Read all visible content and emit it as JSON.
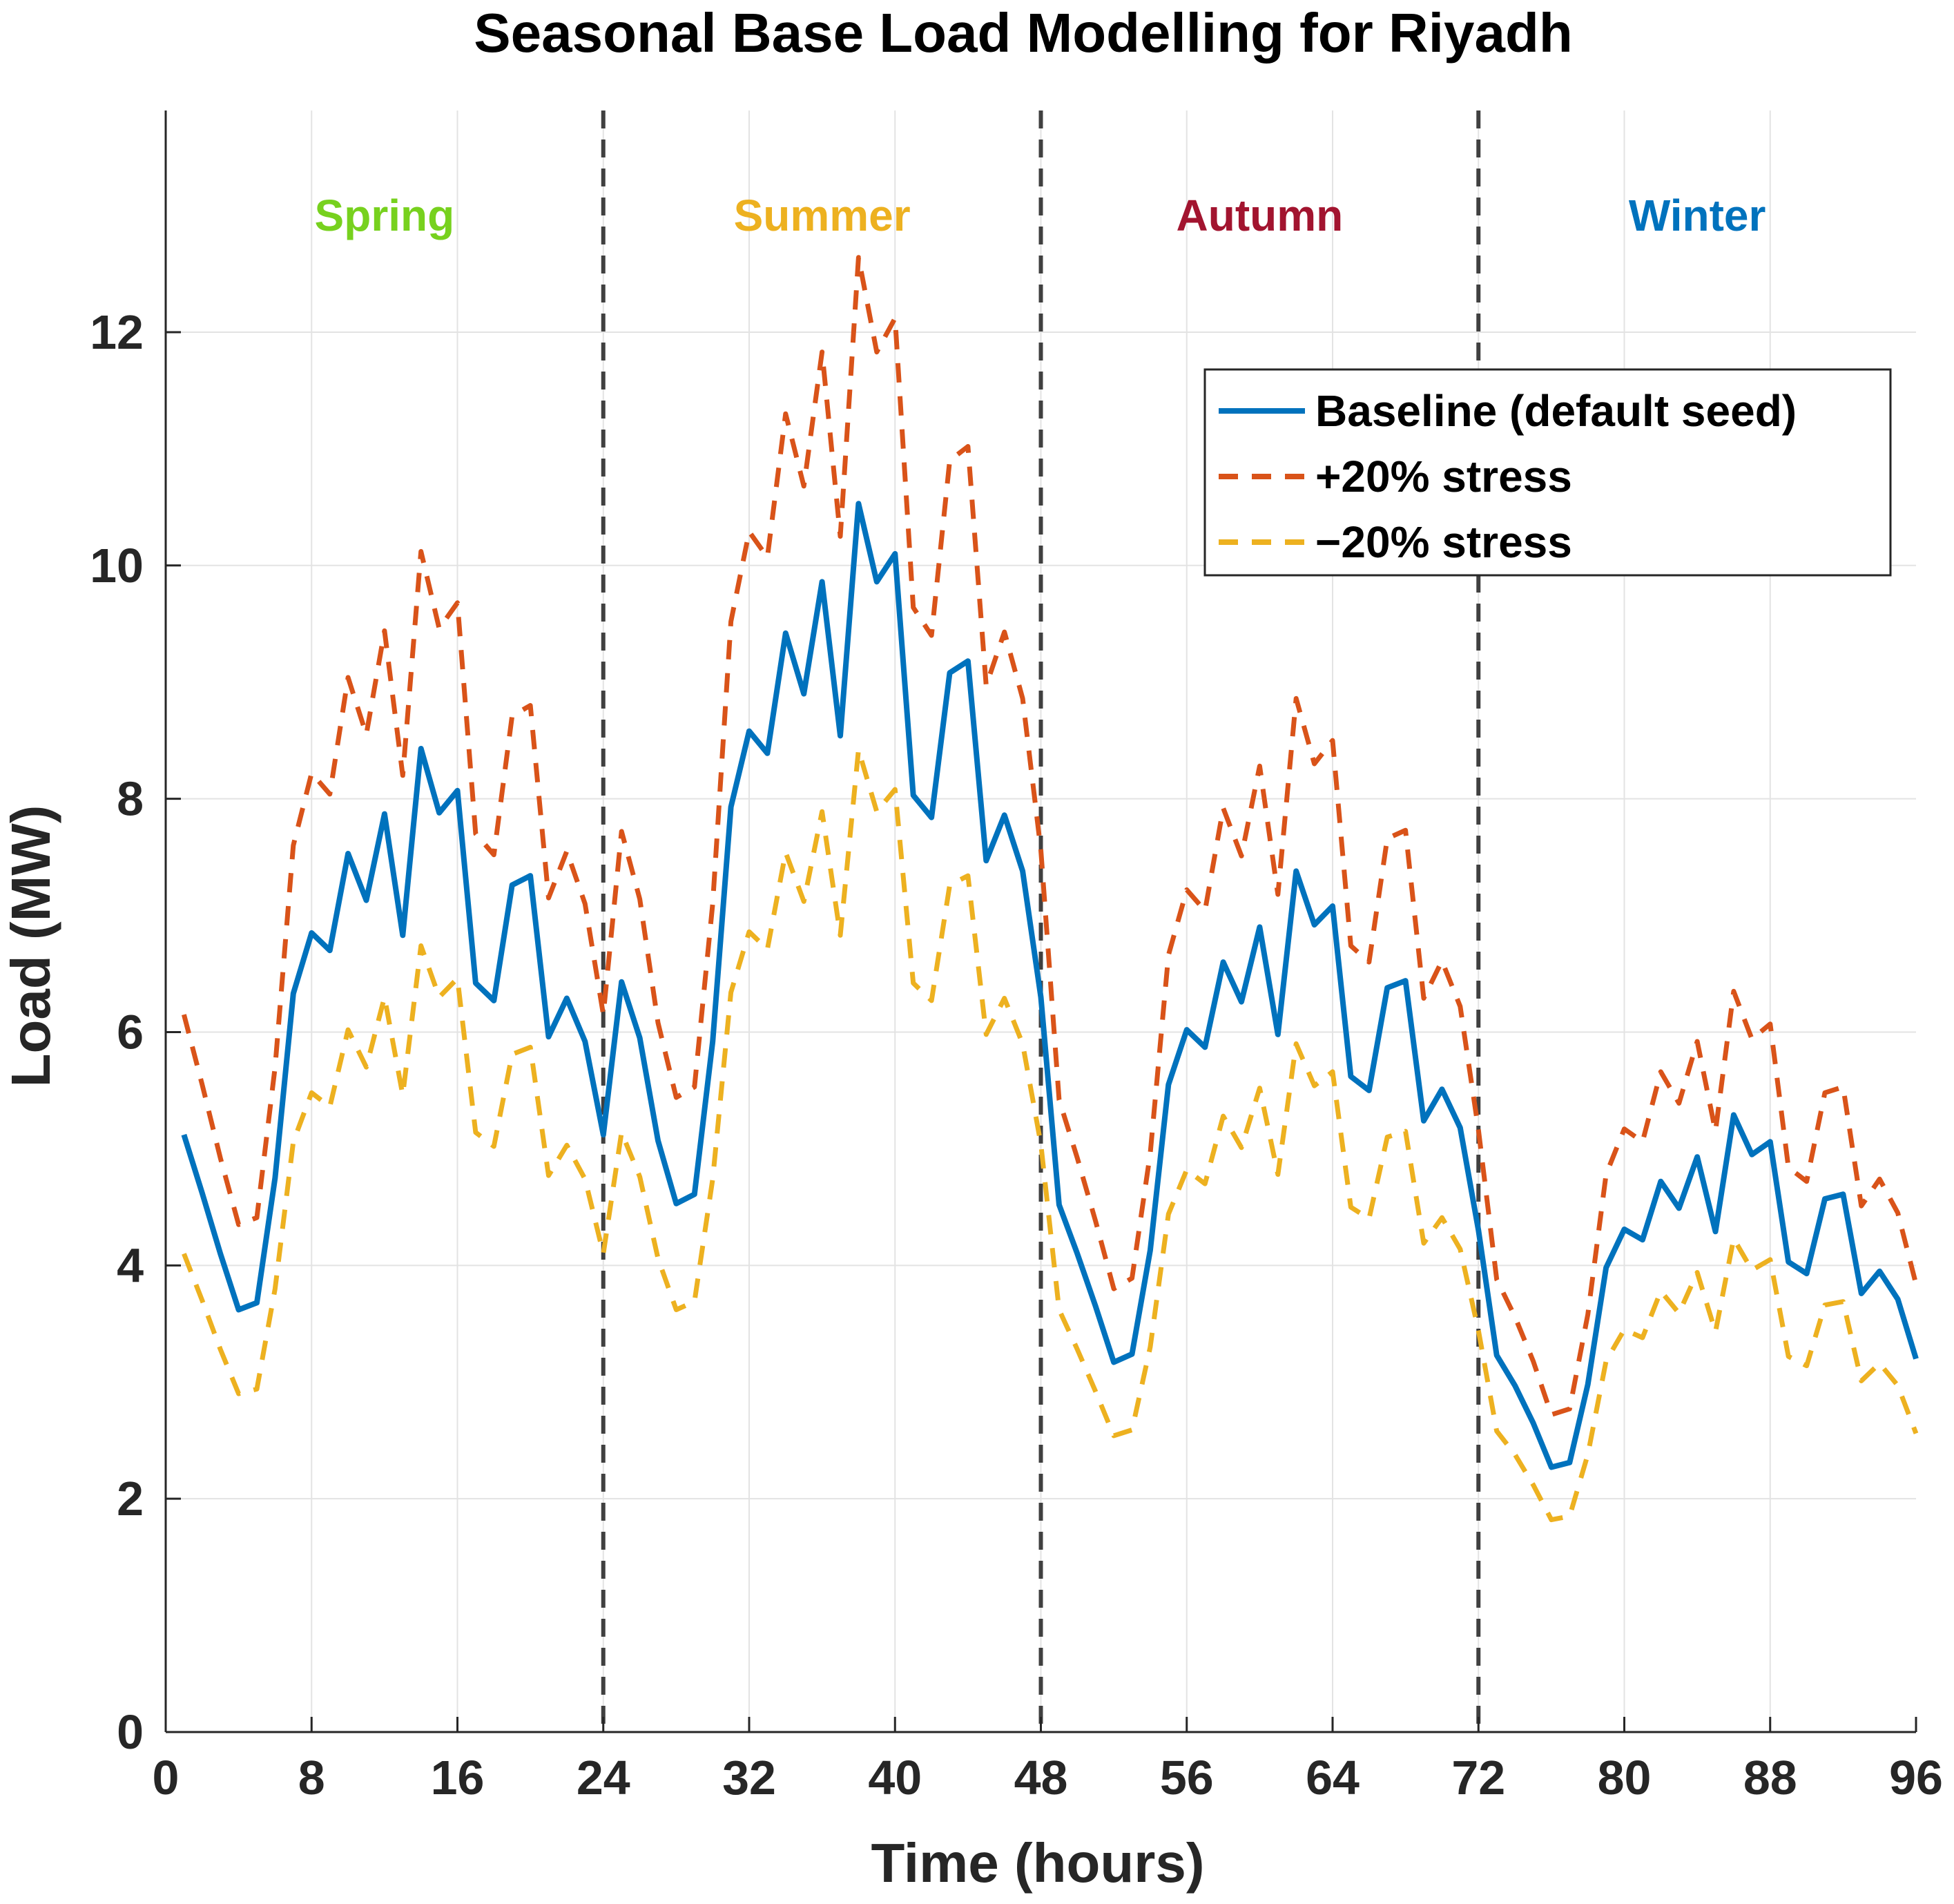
{
  "chart_data": {
    "type": "line",
    "title": "Seasonal Base Load Modelling for Riyadh",
    "xlabel": "Time (hours)",
    "ylabel": "Load (MW)",
    "xlim": [
      0,
      96
    ],
    "ylim": [
      0,
      13.9
    ],
    "xticks": [
      0,
      8,
      16,
      24,
      32,
      40,
      48,
      56,
      64,
      72,
      80,
      88,
      96
    ],
    "yticks": [
      0,
      2,
      4,
      6,
      8,
      10,
      12
    ],
    "grid": true,
    "legend_position": "top-right",
    "x": [
      1,
      2,
      3,
      4,
      5,
      6,
      7,
      8,
      9,
      10,
      11,
      12,
      13,
      14,
      15,
      16,
      17,
      18,
      19,
      20,
      21,
      22,
      23,
      24,
      25,
      26,
      27,
      28,
      29,
      30,
      31,
      32,
      33,
      34,
      35,
      36,
      37,
      38,
      39,
      40,
      41,
      42,
      43,
      44,
      45,
      46,
      47,
      48,
      49,
      50,
      51,
      52,
      53,
      54,
      55,
      56,
      57,
      58,
      59,
      60,
      61,
      62,
      63,
      64,
      65,
      66,
      67,
      68,
      69,
      70,
      71,
      72,
      73,
      74,
      75,
      76,
      77,
      78,
      79,
      80,
      81,
      82,
      83,
      84,
      85,
      86,
      87,
      88,
      89,
      90,
      91,
      92,
      93,
      94,
      95,
      96
    ],
    "series": [
      {
        "name": "Baseline (default seed)",
        "color": "#0072BD",
        "style": "solid",
        "values": [
          5.12,
          4.62,
          4.1,
          3.62,
          3.68,
          4.75,
          6.33,
          6.85,
          6.7,
          7.53,
          7.13,
          7.87,
          6.83,
          8.43,
          7.88,
          8.07,
          6.42,
          6.27,
          7.26,
          7.34,
          5.96,
          6.29,
          5.92,
          5.12,
          6.43,
          5.95,
          5.07,
          4.53,
          4.61,
          5.92,
          7.93,
          8.58,
          8.39,
          9.42,
          8.9,
          9.86,
          8.54,
          10.53,
          9.86,
          10.1,
          8.03,
          7.84,
          9.08,
          9.18,
          7.47,
          7.86,
          7.38,
          6.3,
          4.52,
          4.1,
          3.65,
          3.17,
          3.24,
          4.13,
          5.55,
          6.02,
          5.87,
          6.6,
          6.26,
          6.9,
          5.98,
          7.38,
          6.92,
          7.08,
          5.62,
          5.5,
          6.38,
          6.44,
          5.24,
          5.51,
          5.18,
          4.3,
          3.23,
          2.97,
          2.65,
          2.27,
          2.31,
          2.98,
          3.98,
          4.31,
          4.22,
          4.72,
          4.49,
          4.93,
          4.29,
          5.29,
          4.95,
          5.06,
          4.03,
          3.93,
          4.57,
          4.61,
          3.76,
          3.95,
          3.71,
          3.2
        ]
      },
      {
        "name": "+20% stress",
        "color": "#D95319",
        "style": "dashed",
        "values": [
          6.15,
          5.55,
          4.92,
          4.35,
          4.41,
          5.7,
          7.6,
          8.22,
          8.04,
          9.04,
          8.55,
          9.44,
          8.2,
          10.12,
          9.46,
          9.68,
          7.7,
          7.52,
          8.71,
          8.8,
          7.15,
          7.55,
          7.1,
          6.15,
          7.72,
          7.14,
          6.08,
          5.44,
          5.53,
          7.1,
          9.52,
          10.29,
          10.07,
          11.3,
          10.68,
          11.83,
          10.25,
          12.64,
          11.83,
          12.12,
          9.64,
          9.4,
          10.9,
          11.02,
          8.97,
          9.43,
          8.86,
          7.56,
          5.42,
          4.92,
          4.38,
          3.8,
          3.89,
          4.96,
          6.66,
          7.22,
          7.04,
          7.92,
          7.51,
          8.28,
          7.18,
          8.86,
          8.3,
          8.5,
          6.74,
          6.6,
          7.66,
          7.73,
          6.29,
          6.61,
          6.22,
          5.16,
          3.88,
          3.56,
          3.18,
          2.72,
          2.77,
          3.58,
          4.78,
          5.17,
          5.06,
          5.66,
          5.39,
          5.92,
          5.15,
          6.35,
          5.94,
          6.07,
          4.84,
          4.72,
          5.48,
          5.53,
          4.51,
          4.74,
          4.45,
          3.84
        ]
      },
      {
        "name": "−20% stress",
        "color": "#EDB120",
        "style": "dashed",
        "values": [
          4.1,
          3.7,
          3.28,
          2.9,
          2.94,
          3.8,
          5.06,
          5.48,
          5.36,
          6.02,
          5.7,
          6.3,
          5.46,
          6.74,
          6.3,
          6.46,
          5.14,
          5.02,
          5.81,
          5.87,
          4.77,
          5.03,
          4.74,
          4.1,
          5.14,
          4.76,
          4.06,
          3.62,
          3.69,
          4.74,
          6.34,
          6.86,
          6.71,
          7.54,
          7.12,
          7.89,
          6.83,
          8.42,
          7.89,
          8.08,
          6.42,
          6.27,
          7.26,
          7.34,
          5.98,
          6.29,
          5.9,
          5.04,
          3.62,
          3.28,
          2.92,
          2.54,
          2.59,
          3.3,
          4.44,
          4.82,
          4.7,
          5.28,
          5.01,
          5.52,
          4.78,
          5.9,
          5.54,
          5.66,
          4.5,
          4.4,
          5.1,
          5.15,
          4.19,
          4.41,
          4.14,
          3.44,
          2.58,
          2.38,
          2.12,
          1.82,
          1.85,
          2.38,
          3.18,
          3.45,
          3.38,
          3.78,
          3.59,
          3.94,
          3.43,
          4.23,
          3.96,
          4.05,
          3.22,
          3.14,
          3.66,
          3.69,
          3.01,
          3.16,
          2.97,
          2.56
        ]
      }
    ],
    "dividers_x": [
      24,
      48,
      72
    ],
    "seasons": [
      {
        "name": "Spring",
        "color": "#77D11E",
        "x": 12
      },
      {
        "name": "Summer",
        "color": "#EDB120",
        "x": 36
      },
      {
        "name": "Autumn",
        "color": "#A2142F",
        "x": 60
      },
      {
        "name": "Winter",
        "color": "#0072BD",
        "x": 84
      }
    ],
    "season_label_y": 13.0
  }
}
